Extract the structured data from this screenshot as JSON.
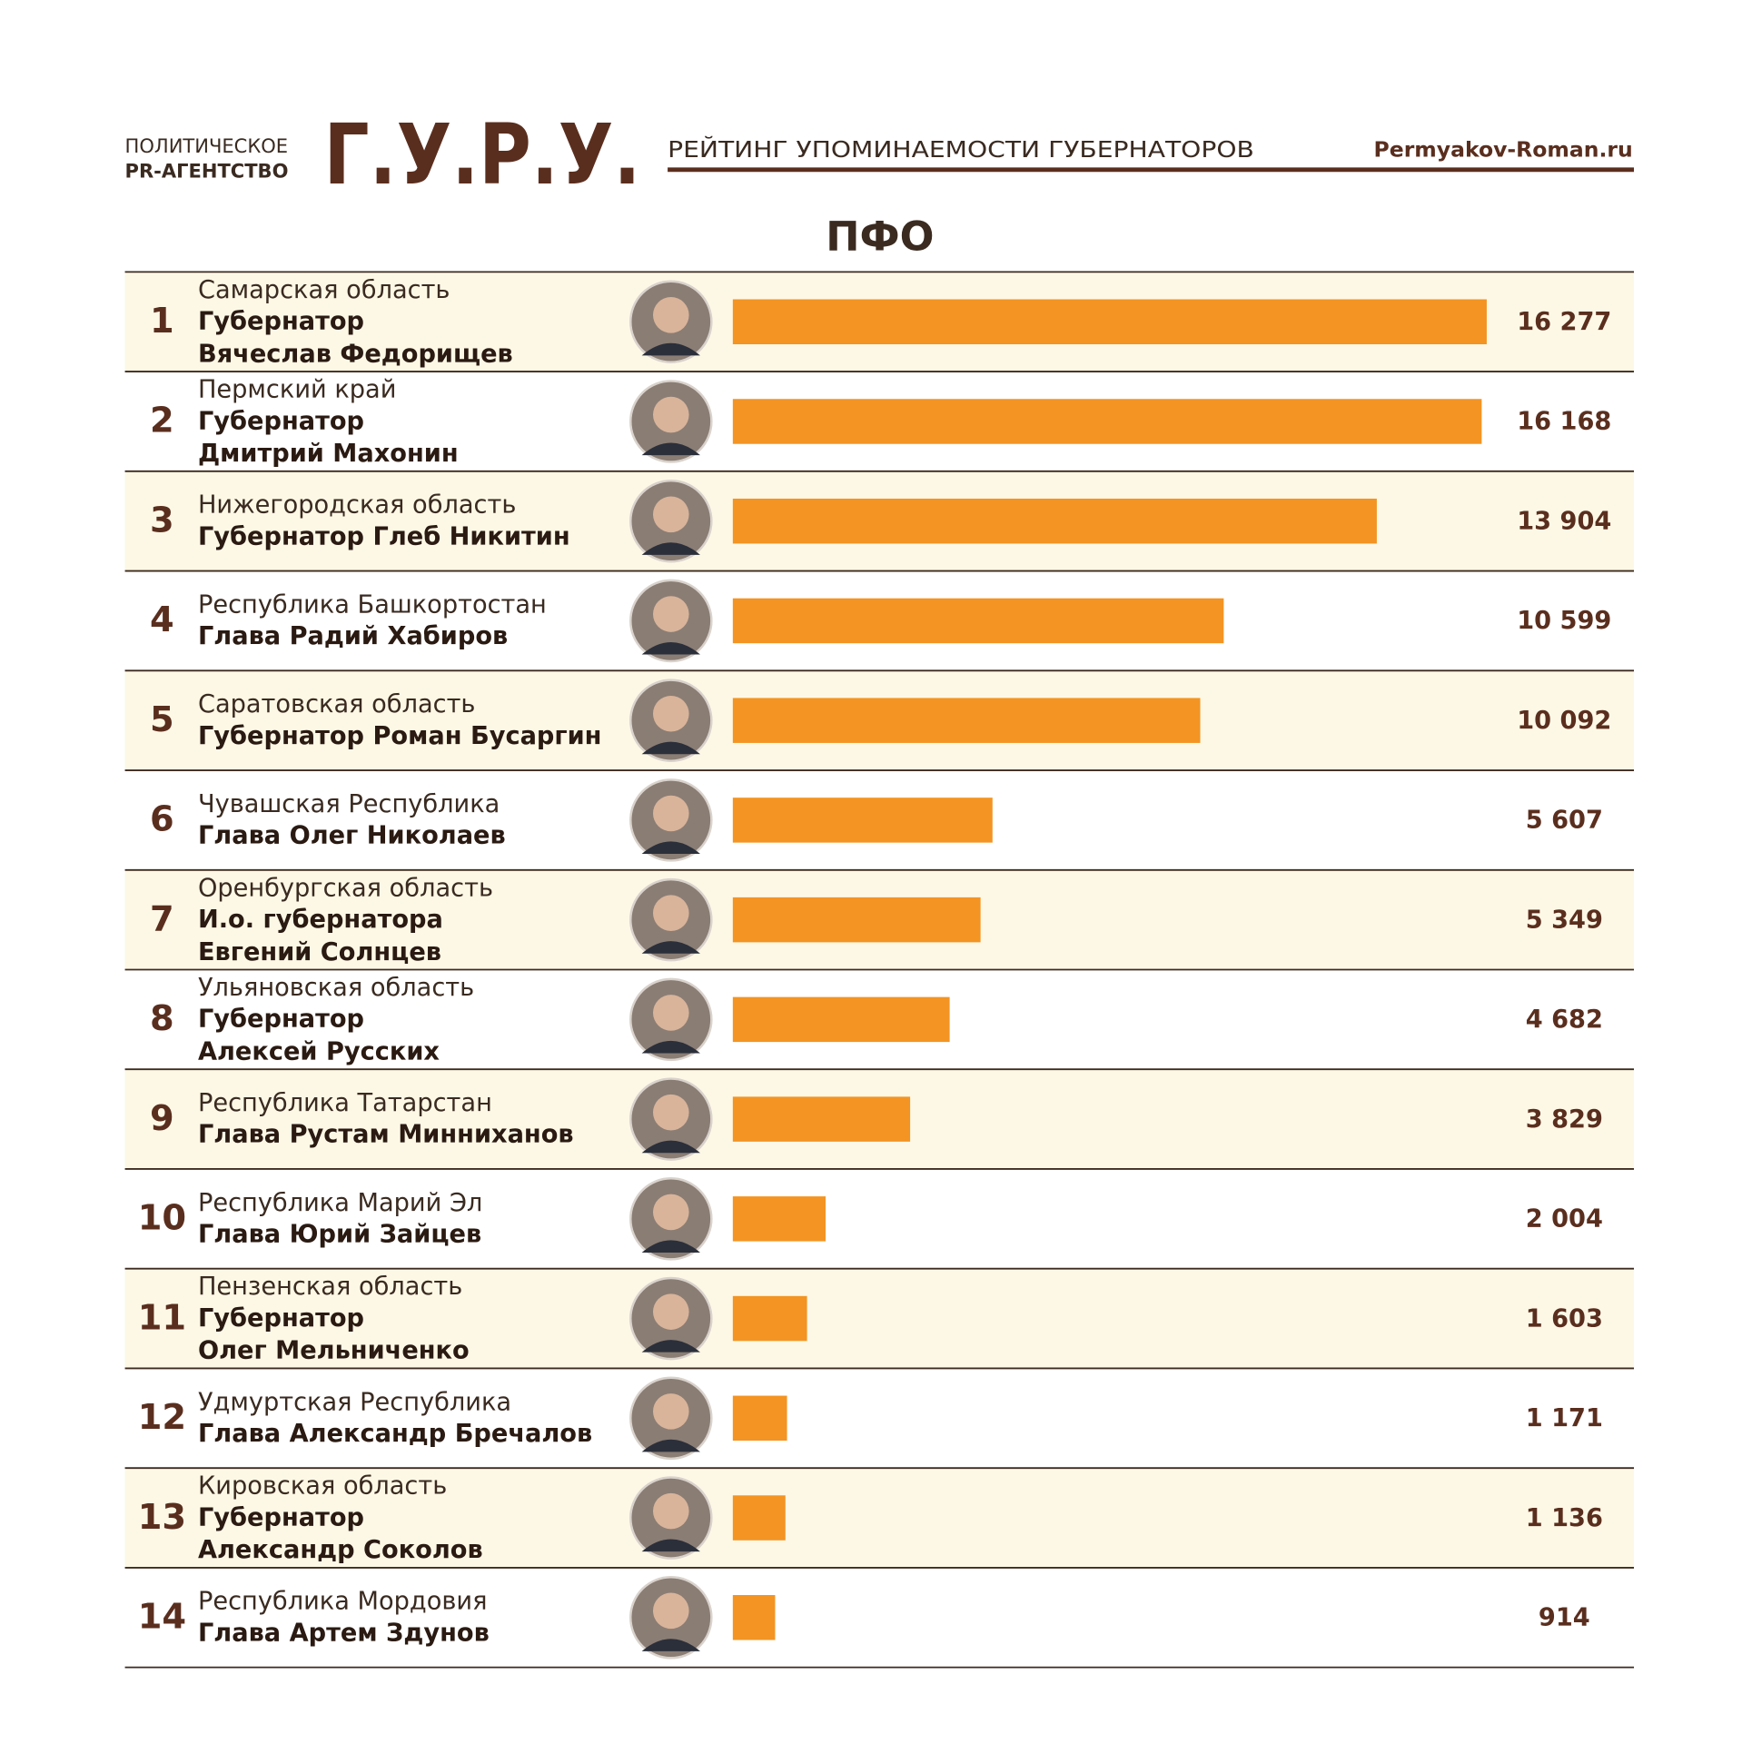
{
  "chart_data": {
    "type": "bar",
    "orientation": "horizontal",
    "agency_line1": "ПОЛИТИЧЕСКОЕ",
    "agency_line2": "PR-АГЕНТСТВО",
    "logo": "Г.У.Р.У.",
    "header": "РЕЙТИНГ УПОМИНАЕМОСТИ ГУБЕРНАТОРОВ",
    "site": "Permyakov-Roman.ru",
    "title": "ПФО",
    "color": "#f39423",
    "ranks": [
      "1",
      "2",
      "3",
      "4",
      "5",
      "6",
      "7",
      "8",
      "9",
      "10",
      "11",
      "12",
      "13",
      "14"
    ],
    "categories": [
      "Самарская область",
      "Пермский край",
      "Нижегородская область",
      "Республика Башкортостан",
      "Саратовская область",
      "Чувашская Республика",
      "Оренбургская область",
      "Ульяновская область",
      "Республика Татарстан",
      "Республика Марий Эл",
      "Пензенская область",
      "Удмуртская Республика",
      "Кировская область",
      "Республика Мордовия"
    ],
    "officials": [
      [
        "Губернатор",
        "Вячеслав Федорищев"
      ],
      [
        "Губернатор",
        "Дмитрий Махонин"
      ],
      [
        "Губернатор Глеб Никитин"
      ],
      [
        "Глава Радий Хабиров"
      ],
      [
        "Губернатор Роман Бусаргин"
      ],
      [
        "Глава Олег Николаев"
      ],
      [
        "И.о. губернатора",
        "Евгений Солнцев"
      ],
      [
        "Губернатор",
        "Алексей Русских"
      ],
      [
        "Глава Рустам Минниханов"
      ],
      [
        "Глава Юрий Зайцев"
      ],
      [
        "Губернатор",
        "Олег Мельниченко"
      ],
      [
        "Глава Александр Бречалов"
      ],
      [
        "Губернатор",
        "Александр Соколов"
      ],
      [
        "Глава Артем Здунов"
      ]
    ],
    "values": [
      16277,
      16168,
      13904,
      10599,
      10092,
      5607,
      5349,
      4682,
      3829,
      2004,
      1603,
      1171,
      1136,
      914
    ],
    "value_labels": [
      "16 277",
      "16 168",
      "13 904",
      "10 599",
      "10 092",
      "5 607",
      "5 349",
      "4 682",
      "3 829",
      "2 004",
      "1 603",
      "1 171",
      "1 136",
      "914"
    ]
  }
}
